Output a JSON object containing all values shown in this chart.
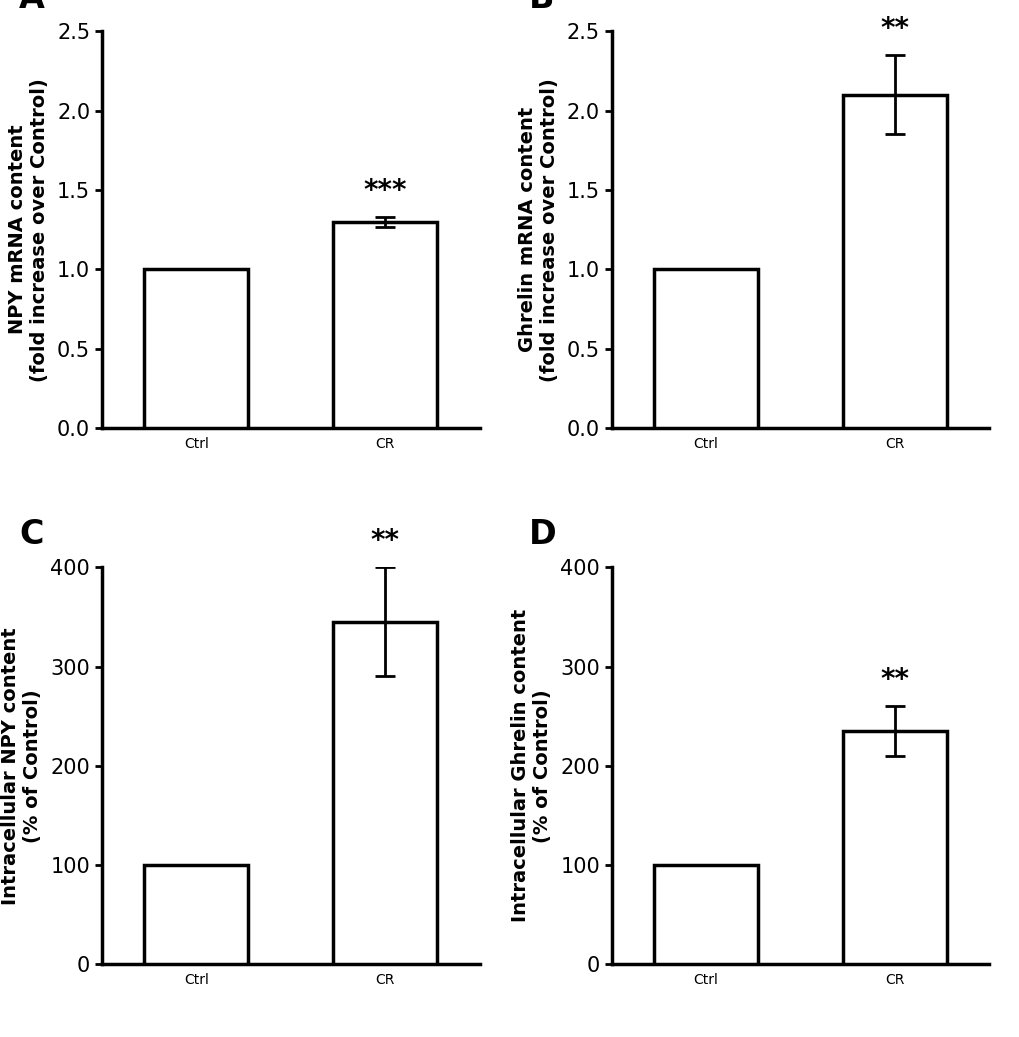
{
  "panels": [
    {
      "label": "A",
      "ylabel": "NPY mRNA content\n(fold increase over Control)",
      "categories": [
        "Ctrl",
        "CR"
      ],
      "values": [
        1.0,
        1.3
      ],
      "errors": [
        0.0,
        0.03
      ],
      "ylim": [
        0,
        2.5
      ],
      "yticks": [
        0.0,
        0.5,
        1.0,
        1.5,
        2.0,
        2.5
      ],
      "significance": "***"
    },
    {
      "label": "B",
      "ylabel": "Ghrelin mRNA content\n(fold increase over Control)",
      "categories": [
        "Ctrl",
        "CR"
      ],
      "values": [
        1.0,
        2.1
      ],
      "errors": [
        0.0,
        0.25
      ],
      "ylim": [
        0,
        2.5
      ],
      "yticks": [
        0.0,
        0.5,
        1.0,
        1.5,
        2.0,
        2.5
      ],
      "significance": "**"
    },
    {
      "label": "C",
      "ylabel": "Intracellular NPY content\n(% of Control)",
      "categories": [
        "Ctrl",
        "CR"
      ],
      "values": [
        100,
        345
      ],
      "errors": [
        0,
        55
      ],
      "ylim": [
        0,
        400
      ],
      "yticks": [
        0,
        100,
        200,
        300,
        400
      ],
      "significance": "**"
    },
    {
      "label": "D",
      "ylabel": "Intracellular Ghrelin content\n(% of Control)",
      "categories": [
        "Ctrl",
        "CR"
      ],
      "values": [
        100,
        235
      ],
      "errors": [
        0,
        25
      ],
      "ylim": [
        0,
        400
      ],
      "yticks": [
        0,
        100,
        200,
        300,
        400
      ],
      "significance": "**"
    }
  ],
  "bar_color": "#ffffff",
  "bar_edgecolor": "#000000",
  "bar_linewidth": 2.5,
  "errorbar_color": "#000000",
  "errorbar_linewidth": 2.0,
  "errorbar_capsize": 7,
  "errorbar_capthick": 2.0,
  "background_color": "#ffffff",
  "xtick_fontsize": 17,
  "ytick_fontsize": 15,
  "ylabel_fontsize": 14,
  "sig_fontsize": 20,
  "panel_label_fontsize": 24,
  "bar_width": 0.55,
  "bar_positions": [
    0.5,
    1.5
  ]
}
